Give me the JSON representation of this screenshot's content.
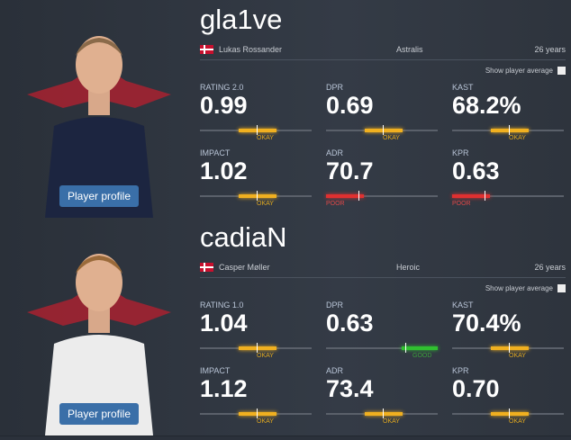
{
  "players": [
    {
      "nickname": "gla1ve",
      "name": "Lukas Rossander",
      "team": "Astralis",
      "age": "26 years",
      "average_toggle": "Show player average",
      "button": "Player profile",
      "stats": [
        {
          "label": "RATING 2.0",
          "value": "0.99",
          "rating": "OKAY"
        },
        {
          "label": "DPR",
          "value": "0.69",
          "rating": "OKAY"
        },
        {
          "label": "KAST",
          "value": "68.2%",
          "rating": "OKAY"
        },
        {
          "label": "IMPACT",
          "value": "1.02",
          "rating": "OKAY"
        },
        {
          "label": "ADR",
          "value": "70.7",
          "rating": "POOR"
        },
        {
          "label": "KPR",
          "value": "0.63",
          "rating": "POOR"
        }
      ]
    },
    {
      "nickname": "cadiaN",
      "name": "Casper Møller",
      "team": "Heroic",
      "age": "26 years",
      "average_toggle": "Show player average",
      "button": "Player profile",
      "stats": [
        {
          "label": "RATING 1.0",
          "value": "1.04",
          "rating": "OKAY"
        },
        {
          "label": "DPR",
          "value": "0.63",
          "rating": "GOOD"
        },
        {
          "label": "KAST",
          "value": "70.4%",
          "rating": "OKAY"
        },
        {
          "label": "IMPACT",
          "value": "1.12",
          "rating": "OKAY"
        },
        {
          "label": "ADR",
          "value": "73.4",
          "rating": "OKAY"
        },
        {
          "label": "KPR",
          "value": "0.70",
          "rating": "OKAY"
        }
      ]
    }
  ]
}
